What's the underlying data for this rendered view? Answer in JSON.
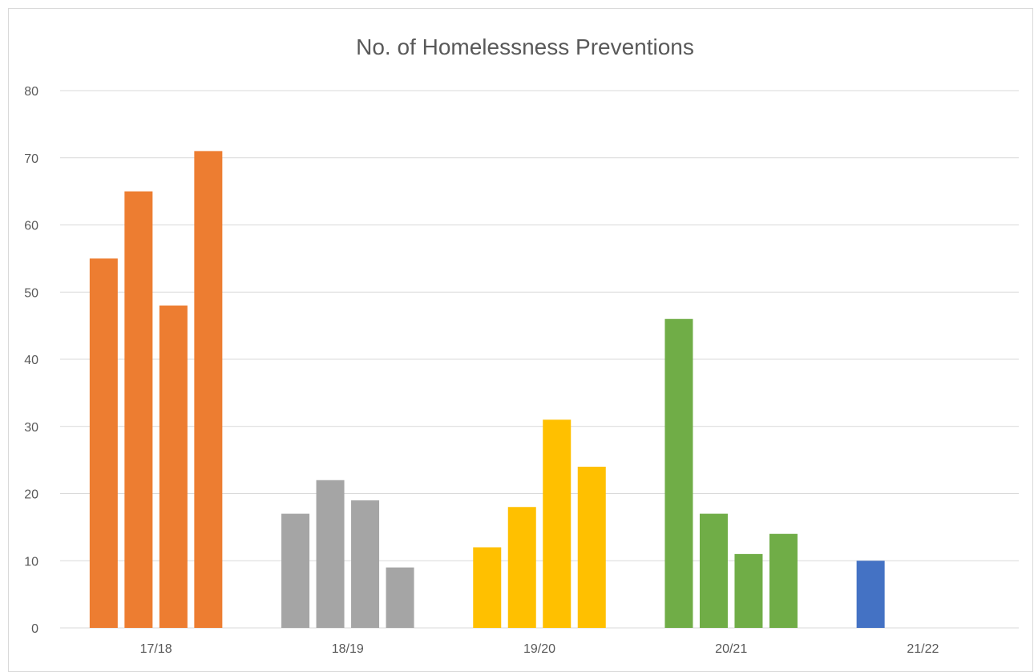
{
  "chart_data": {
    "type": "bar",
    "title": "No. of Homelessness Preventions",
    "xlabel": "",
    "ylabel": "",
    "ylim": [
      0,
      80
    ],
    "yticks": [
      0,
      10,
      20,
      30,
      40,
      50,
      60,
      70,
      80
    ],
    "grid": true,
    "legend": "none",
    "categories": [
      "17/18",
      "18/19",
      "19/20",
      "20/21",
      "21/22"
    ],
    "groups": [
      {
        "category": "17/18",
        "color": "#ED7D31",
        "values": [
          55,
          65,
          48,
          71
        ]
      },
      {
        "category": "18/19",
        "color": "#A5A5A5",
        "values": [
          17,
          22,
          19,
          9
        ]
      },
      {
        "category": "19/20",
        "color": "#FFC000",
        "values": [
          12,
          18,
          31,
          24
        ]
      },
      {
        "category": "20/21",
        "color": "#70AD47",
        "values": [
          46,
          17,
          11,
          14
        ]
      },
      {
        "category": "21/22",
        "color": "#4472C4",
        "values": [
          10
        ]
      }
    ]
  }
}
